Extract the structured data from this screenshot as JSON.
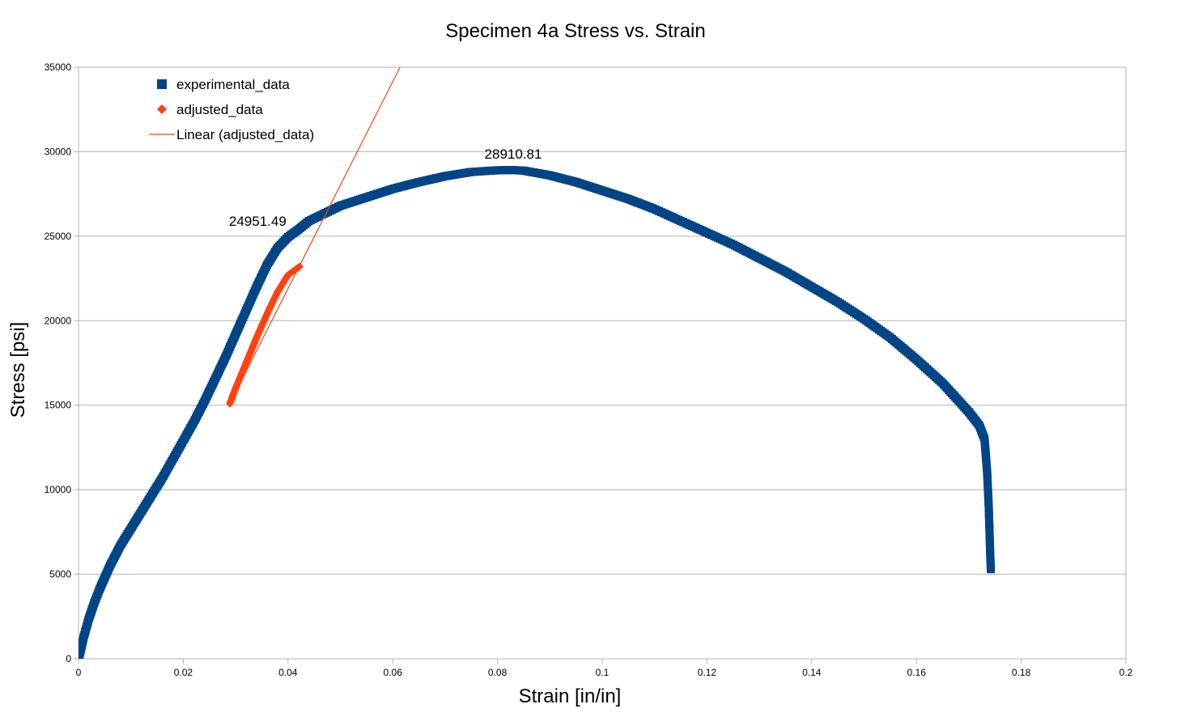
{
  "chart_data": {
    "type": "scatter",
    "title": "Specimen 4a Stress vs. Strain",
    "xlabel": "Strain [in/in]",
    "ylabel": "Stress [psi]",
    "xlim": [
      0,
      0.2
    ],
    "ylim": [
      0,
      35000
    ],
    "x_ticks": [
      0,
      0.02,
      0.04,
      0.06,
      0.08,
      0.1,
      0.12,
      0.14,
      0.16,
      0.18,
      0.2
    ],
    "x_tick_labels": [
      "0",
      "0.02",
      "0.04",
      "0.06",
      "0.08",
      "0.1",
      "0.12",
      "0.14",
      "0.16",
      "0.18",
      "0.2"
    ],
    "y_ticks": [
      0,
      5000,
      10000,
      15000,
      20000,
      25000,
      30000,
      35000
    ],
    "y_tick_labels": [
      "0",
      "5000",
      "10000",
      "15000",
      "20000",
      "25000",
      "30000",
      "35000"
    ],
    "grid": "horizontal",
    "legend_position": "top-left",
    "series": [
      {
        "name": "experimental_data",
        "kind": "markers",
        "marker": "square",
        "color": "#004586",
        "x": [
          0,
          0.0005,
          0.001,
          0.002,
          0.003,
          0.004,
          0.005,
          0.006,
          0.008,
          0.01,
          0.012,
          0.014,
          0.016,
          0.018,
          0.02,
          0.022,
          0.024,
          0.026,
          0.028,
          0.03,
          0.032,
          0.034,
          0.036,
          0.038,
          0.04,
          0.042,
          0.044,
          0.046,
          0.048,
          0.05,
          0.055,
          0.06,
          0.065,
          0.07,
          0.075,
          0.08,
          0.083,
          0.085,
          0.09,
          0.095,
          0.1,
          0.105,
          0.11,
          0.115,
          0.12,
          0.125,
          0.13,
          0.135,
          0.14,
          0.145,
          0.15,
          0.155,
          0.16,
          0.165,
          0.17,
          0.172,
          0.173,
          0.1735,
          0.1738,
          0.174,
          0.1741,
          0.1742
        ],
        "y": [
          0,
          600,
          1300,
          2400,
          3300,
          4100,
          4800,
          5500,
          6700,
          7700,
          8700,
          9700,
          10700,
          11800,
          12900,
          14000,
          15200,
          16500,
          17800,
          19200,
          20600,
          22000,
          23300,
          24300,
          24951.49,
          25400,
          25900,
          26200,
          26500,
          26800,
          27300,
          27800,
          28200,
          28550,
          28800,
          28900,
          28910.81,
          28880,
          28600,
          28200,
          27700,
          27200,
          26600,
          25900,
          25200,
          24500,
          23700,
          22900,
          22000,
          21100,
          20100,
          19000,
          17700,
          16300,
          14600,
          13800,
          13000,
          11000,
          9000,
          7000,
          6000,
          5300
        ]
      },
      {
        "name": "adjusted_data",
        "kind": "markers",
        "marker": "diamond",
        "color": "#ff420e",
        "x": [
          0.0289,
          0.03,
          0.032,
          0.034,
          0.036,
          0.038,
          0.04,
          0.0422
        ],
        "y": [
          15100,
          16000,
          17500,
          19000,
          20400,
          21700,
          22700,
          23200
        ]
      },
      {
        "name": "Linear (adjusted_data)",
        "kind": "trendline",
        "color": "#ff420e",
        "x": [
          0.0289,
          0.0614
        ],
        "y": [
          15100,
          35000
        ]
      }
    ],
    "annotations": [
      {
        "text": "28910.81",
        "x": 0.083,
        "y": 28910.81
      },
      {
        "text": "24951.49",
        "x": 0.04,
        "y": 24951.49
      }
    ]
  }
}
